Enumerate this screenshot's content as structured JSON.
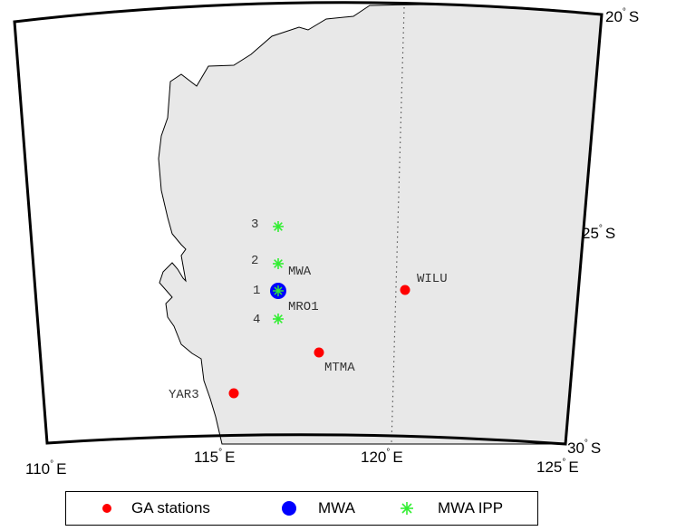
{
  "map": {
    "longitude_labels": [
      {
        "deg": "110",
        "hemi": "E"
      },
      {
        "deg": "115",
        "hemi": "E"
      },
      {
        "deg": "120",
        "hemi": "E"
      },
      {
        "deg": "125",
        "hemi": "E"
      }
    ],
    "latitude_labels": [
      {
        "deg": "20",
        "hemi": "S"
      },
      {
        "deg": "25",
        "hemi": "S"
      },
      {
        "deg": "30",
        "hemi": "S"
      }
    ],
    "degree_symbol": "°",
    "colors": {
      "land": "#e8e8e8",
      "ocean": "#ffffff",
      "ga_station": "#ff0000",
      "mwa": "#0000ff",
      "ipp": "#33ee33",
      "frame": "#000000"
    },
    "ga_stations": [
      {
        "label": "WILU"
      },
      {
        "label": "MRO1"
      },
      {
        "label": "MTMA"
      },
      {
        "label": "YAR3"
      }
    ],
    "mwa_label": "MWA",
    "ipp_points": [
      {
        "label": "3"
      },
      {
        "label": "2"
      },
      {
        "label": "1"
      },
      {
        "label": "4"
      }
    ]
  },
  "legend": {
    "items": [
      {
        "label": "GA stations",
        "icon": "red-dot-icon"
      },
      {
        "label": "MWA",
        "icon": "blue-dot-icon"
      },
      {
        "label": "MWA IPP",
        "icon": "green-asterisk-icon"
      }
    ]
  }
}
